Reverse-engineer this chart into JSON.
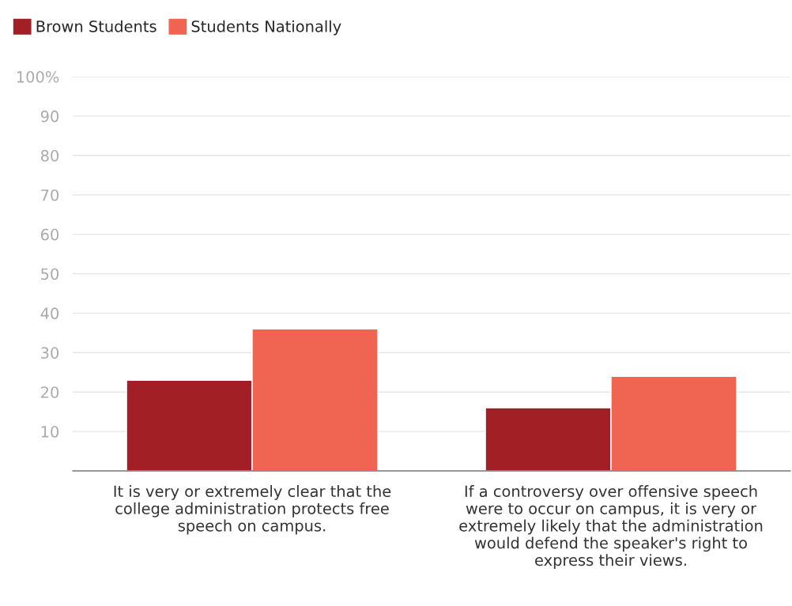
{
  "chart_data": {
    "type": "bar",
    "categories": [
      "It is very or extremely clear that the\ncollege administration protects free\nspeech on campus.",
      "If a controversy over offensive speech\nwere to occur on campus, it is very or\nextremely likely that the administration\nwould defend the speaker's right to\nexpress their views."
    ],
    "series": [
      {
        "name": "Brown Students",
        "color": "#a31f26",
        "values": [
          23,
          16
        ]
      },
      {
        "name": "Students Nationally",
        "color": "#f06551",
        "values": [
          36,
          24
        ]
      }
    ],
    "ylim": [
      0,
      100
    ],
    "yticks": [
      10,
      20,
      30,
      40,
      50,
      60,
      70,
      80,
      90,
      {
        "value": 100,
        "label": "100%"
      }
    ],
    "grid": "y",
    "legend": "top left"
  }
}
